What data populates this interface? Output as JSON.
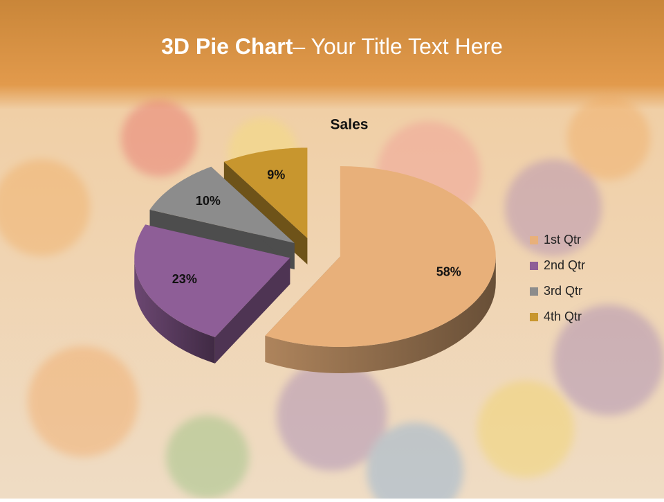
{
  "slide": {
    "title_bold": "3D Pie Chart",
    "title_rest": "– Your Title Text Here"
  },
  "chart_data": {
    "type": "pie",
    "title": "Sales",
    "categories": [
      "1st Qtr",
      "2nd Qtr",
      "3rd Qtr",
      "4th Qtr"
    ],
    "values": [
      58,
      23,
      10,
      9
    ],
    "value_labels": [
      "58%",
      "23%",
      "10%",
      "9%"
    ],
    "colors": [
      "#e8b07a",
      "#8e5e97",
      "#8c8c8c",
      "#c8962e"
    ],
    "legend": "right"
  }
}
